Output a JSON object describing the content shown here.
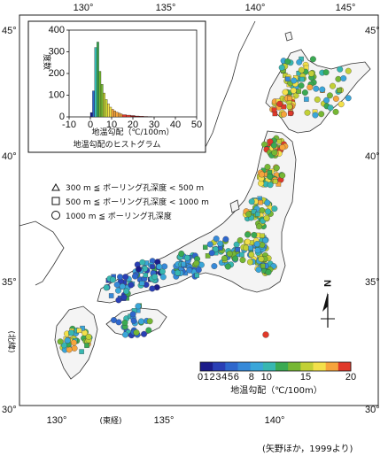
{
  "map": {
    "lat_labels": [
      "45°",
      "40°",
      "35°",
      "30°"
    ],
    "lon_labels_top": [
      "130°",
      "135°",
      "140°",
      "145°"
    ],
    "lon_labels_bottom": [
      "130°",
      "135°",
      "140°"
    ],
    "lon_axis_title": "(東経)",
    "lat_axis_title": "(北緯)",
    "north_label": "N"
  },
  "legend": {
    "items": [
      {
        "symbol": "triangle",
        "text": "300 m ≦ ボーリング孔深度 <  500 m"
      },
      {
        "symbol": "square",
        "text": "500 m ≦ ボーリング孔深度 < 1000 m"
      },
      {
        "symbol": "circle",
        "text": "1000 m ≦ ボーリング孔深度"
      }
    ]
  },
  "colorbar": {
    "ticks": [
      "0",
      "1",
      "2",
      "3",
      "4",
      "5",
      "6",
      "8",
      "10",
      "15",
      "20"
    ],
    "tick_values": [
      0,
      1,
      2,
      3,
      4,
      5,
      6,
      8,
      10,
      15,
      20
    ],
    "title": "地温勾配（℃/100m）",
    "colors": [
      "#1c1c8a",
      "#2a3fb5",
      "#2e67cc",
      "#3689d8",
      "#3aa6d9",
      "#37b7b1",
      "#3aaa52",
      "#76b734",
      "#c2d036",
      "#f3e04a",
      "#f6a43c",
      "#e0392a"
    ]
  },
  "histogram": {
    "xlabel": "地温勾配（℃/100m）",
    "ylabel": "度数",
    "caption": "地温勾配のヒストグラム",
    "xticks": [
      "-10",
      "0",
      "10",
      "20",
      "30",
      "40",
      "50"
    ],
    "yticks": [
      "0",
      "100",
      "200",
      "300",
      "400"
    ],
    "xlim": [
      -10,
      50
    ],
    "ylim": [
      0,
      400
    ]
  },
  "chart_data": {
    "type": "bar",
    "title": "地温勾配のヒストグラム",
    "xlabel": "地温勾配（℃/100m）",
    "ylabel": "度数",
    "x": [
      0.5,
      1.5,
      2.5,
      3.5,
      4.5,
      5.5,
      6.5,
      7.5,
      8.5,
      9.5,
      10.5,
      11.5,
      12.5,
      13.5,
      14.5,
      16,
      18,
      20,
      22,
      24,
      26,
      28
    ],
    "values": [
      20,
      120,
      320,
      345,
      210,
      150,
      110,
      80,
      60,
      45,
      35,
      28,
      22,
      18,
      14,
      10,
      8,
      6,
      4,
      3,
      2,
      1
    ],
    "xlim": [
      -10,
      50
    ],
    "ylim": [
      0,
      400
    ]
  },
  "credit": "(矢野ほか，1999より)"
}
